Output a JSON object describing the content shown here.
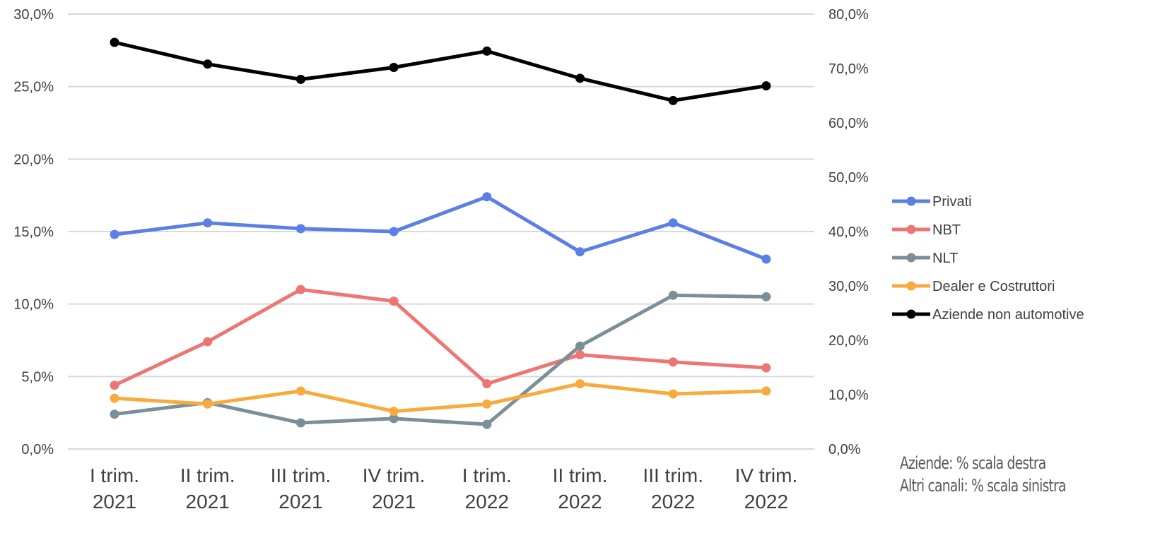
{
  "chart_data": {
    "type": "line",
    "categories": [
      [
        "I trim.",
        "2021"
      ],
      [
        "II trim.",
        "2021"
      ],
      [
        "III trim.",
        "2021"
      ],
      [
        "IV trim.",
        "2021"
      ],
      [
        "I trim.",
        "2022"
      ],
      [
        "II trim.",
        "2022"
      ],
      [
        "III trim.",
        "2022"
      ],
      [
        "IV trim.",
        "2022"
      ]
    ],
    "left_axis": {
      "ticks": [
        "0,0%",
        "5,0%",
        "10,0%",
        "15,0%",
        "20,0%",
        "25,0%",
        "30,0%"
      ],
      "ylim": [
        0,
        30
      ]
    },
    "right_axis": {
      "ticks": [
        "0,0%",
        "10,0%",
        "20,0%",
        "30,0%",
        "40,0%",
        "50,0%",
        "60,0%",
        "70,0%",
        "80,0%"
      ],
      "ylim": [
        0,
        80
      ]
    },
    "grid": true,
    "legend_position": "right",
    "series": [
      {
        "name": "Privati",
        "color": "#5B7FE6",
        "axis": "left",
        "values": [
          14.8,
          15.6,
          15.2,
          15.0,
          17.4,
          13.6,
          15.6,
          13.1
        ]
      },
      {
        "name": "NBT",
        "color": "#EE7672",
        "axis": "left",
        "values": [
          4.4,
          7.4,
          11.0,
          10.2,
          4.5,
          6.5,
          6.0,
          5.6
        ]
      },
      {
        "name": "NLT",
        "color": "#7B8F99",
        "axis": "left",
        "values": [
          2.4,
          3.2,
          1.8,
          2.1,
          1.7,
          7.1,
          10.6,
          10.5
        ]
      },
      {
        "name": "Dealer e Costruttori",
        "color": "#F8AA3D",
        "axis": "left",
        "values": [
          3.5,
          3.1,
          4.0,
          2.6,
          3.1,
          4.5,
          3.8,
          4.0
        ]
      },
      {
        "name": "Aziende non automotive",
        "color": "#000000",
        "axis": "right",
        "values": [
          74.8,
          70.8,
          68.0,
          70.2,
          73.2,
          68.2,
          64.1,
          66.8
        ]
      }
    ]
  },
  "notes": {
    "line1": "Aziende: % scala destra",
    "line2": "Altri canali: % scala sinistra"
  }
}
